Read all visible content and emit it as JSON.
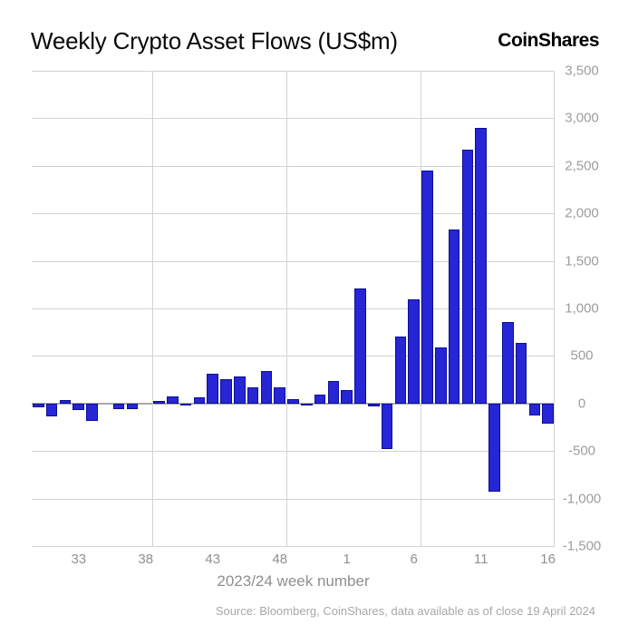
{
  "header": {
    "title": "Weekly Crypto Asset Flows (US$m)",
    "logo": "CoinShares"
  },
  "chart_data": {
    "type": "bar",
    "title": "Weekly Crypto Asset Flows (US$m)",
    "xlabel": "2023/24 week number",
    "ylabel": "",
    "ylim": [
      -1500,
      3500
    ],
    "y_tick_step": 500,
    "y_tick_values": [
      3500,
      3000,
      2500,
      2000,
      1500,
      1000,
      500,
      0,
      -500,
      -1000,
      -1500
    ],
    "y_tick_labels": [
      "3,500",
      "3,000",
      "2,500",
      "2,000",
      "1,500",
      "1,000",
      "500",
      "0",
      "-500",
      "-1,000",
      "-1,500"
    ],
    "categories": [
      "30",
      "31",
      "32",
      "33",
      "34",
      "35",
      "36",
      "37",
      "38",
      "39",
      "40",
      "41",
      "42",
      "43",
      "44",
      "45",
      "46",
      "47",
      "48",
      "49",
      "50",
      "51",
      "52",
      "1",
      "2",
      "3",
      "4",
      "5",
      "6",
      "7",
      "8",
      "9",
      "10",
      "11",
      "12",
      "13",
      "14",
      "15",
      "16"
    ],
    "values": [
      -40,
      -140,
      40,
      -70,
      -180,
      0,
      -60,
      -55,
      0,
      30,
      70,
      -10,
      65,
      315,
      255,
      285,
      170,
      345,
      170,
      45,
      -25,
      95,
      240,
      140,
      1210,
      -30,
      -480,
      700,
      1100,
      2450,
      590,
      1830,
      2670,
      2900,
      -930,
      860,
      640,
      -125,
      -210
    ],
    "x_tick_indices": [
      3,
      8,
      13,
      18,
      23,
      28,
      33,
      38
    ],
    "x_tick_labels": [
      "33",
      "38",
      "43",
      "48",
      "1",
      "6",
      "11",
      "16"
    ],
    "v_gridline_boundaries": [
      9,
      19,
      29,
      39
    ],
    "grid": true,
    "legend": false,
    "bar_color": "#2626d6",
    "bar_border_color": "#0d0d96",
    "gridline_color": "#d2d2d2",
    "zero_line_color": "#ababab",
    "tick_label_color": "#9d9d9d"
  },
  "footer": {
    "source": "Source: Bloomberg, CoinShares, data available as of close 19 April 2024"
  }
}
